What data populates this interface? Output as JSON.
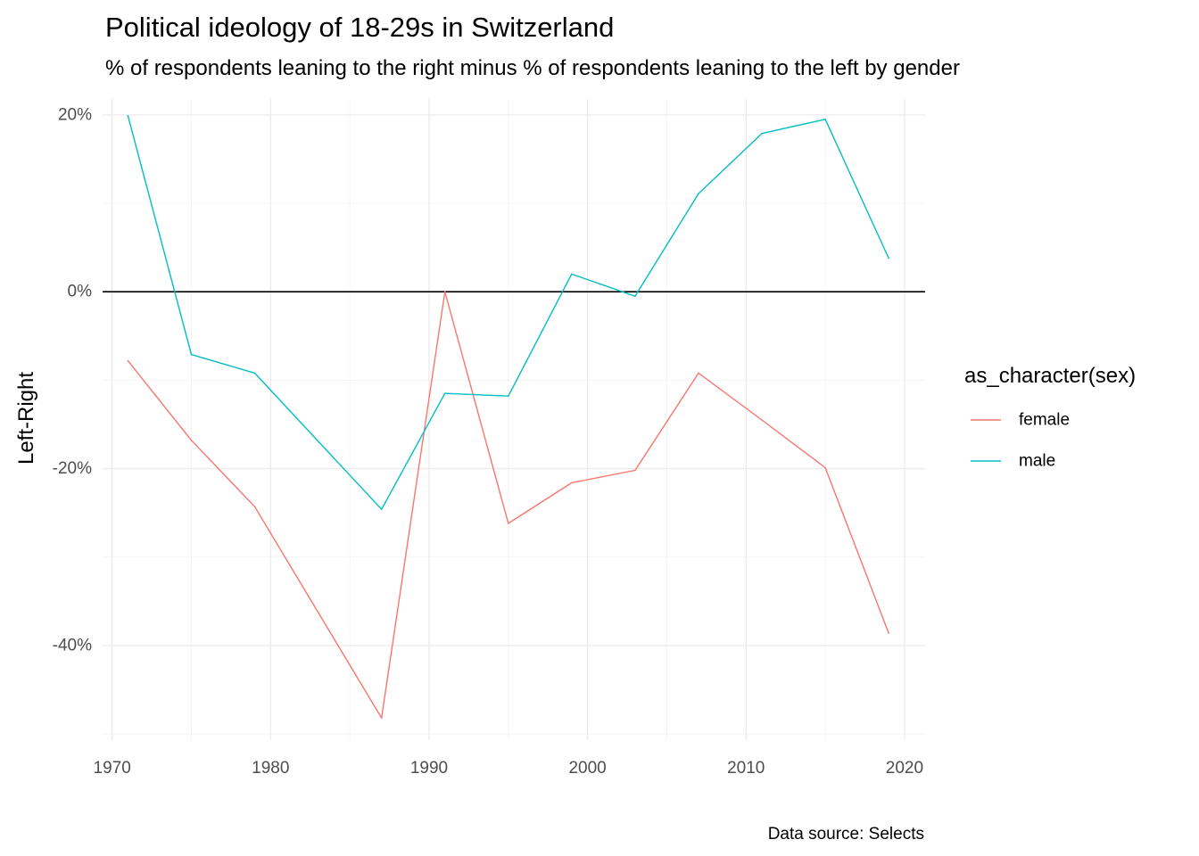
{
  "chart_data": {
    "type": "line",
    "title": "Political ideology of 18-29s in Switzerland",
    "subtitle": "% of respondents leaning to the right minus % of respondents leaning to the left by gender",
    "xlabel": "",
    "ylabel": "Left-Right",
    "caption": "Data source: Selects",
    "xlim": [
      1969.4,
      2021.3
    ],
    "ylim": [
      -50.7,
      21.8
    ],
    "x_ticks": [
      1970,
      1980,
      1990,
      2000,
      2010,
      2020
    ],
    "x_tick_labels": [
      "1970",
      "1980",
      "1990",
      "2000",
      "2010",
      "2020"
    ],
    "x_minor_ticks": [
      1975,
      1985,
      1995,
      2005,
      2015
    ],
    "y_ticks": [
      20,
      0,
      -20,
      -40
    ],
    "y_tick_labels": [
      "20%",
      "0%",
      "-20%",
      "-40%"
    ],
    "y_minor_ticks": [
      10,
      -10,
      -30,
      -50
    ],
    "reference_line": 0,
    "grid": true,
    "legend": {
      "title": "as_character(sex)",
      "position": "right"
    },
    "x": [
      1971,
      1975,
      1979,
      1987,
      1991,
      1995,
      1999,
      2003,
      2007,
      2011,
      2015,
      2019
    ],
    "series": [
      {
        "name": "female",
        "color": "#F8766D",
        "values": [
          -7.8,
          -16.8,
          -24.3,
          -48.2,
          0,
          -26.2,
          -21.6,
          -20.2,
          -9.2,
          -14.5,
          -19.9,
          -38.6
        ]
      },
      {
        "name": "male",
        "color": "#00BFC4",
        "values": [
          19.9,
          -7.1,
          -9.2,
          -24.6,
          -11.5,
          -11.8,
          2,
          -0.5,
          11.1,
          17.9,
          19.5,
          3.8
        ]
      }
    ]
  }
}
